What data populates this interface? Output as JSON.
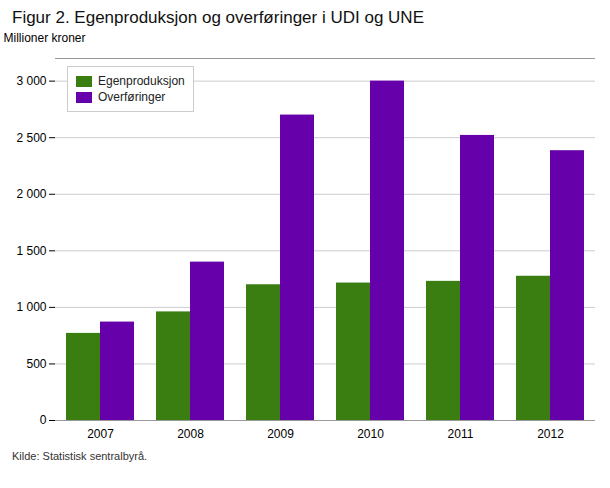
{
  "chart_data": {
    "type": "bar",
    "title": "Figur 2. Egenproduksjon og overføringer i UDI og UNE",
    "y_label": "Millioner kroner",
    "source": "Kilde: Statistisk sentralbyrå.",
    "categories": [
      "2007",
      "2008",
      "2009",
      "2010",
      "2011",
      "2012"
    ],
    "series": [
      {
        "name": "Egenproduksjon",
        "color": "#3a7d11",
        "values": [
          770,
          960,
          1200,
          1215,
          1230,
          1275
        ]
      },
      {
        "name": "Overføringer",
        "color": "#6600aa",
        "values": [
          870,
          1400,
          2700,
          3000,
          2520,
          2385
        ]
      }
    ],
    "ylim": [
      0,
      3200
    ],
    "yticks": [
      0,
      500,
      {
        "value": 1000,
        "label": "1 000"
      },
      {
        "value": 1500,
        "label": "1 500"
      },
      {
        "value": 2000,
        "label": "2 000"
      },
      {
        "value": 2500,
        "label": "2 500"
      },
      {
        "value": 3000,
        "label": "3 000"
      }
    ],
    "grid": true,
    "legend": "upper left"
  }
}
